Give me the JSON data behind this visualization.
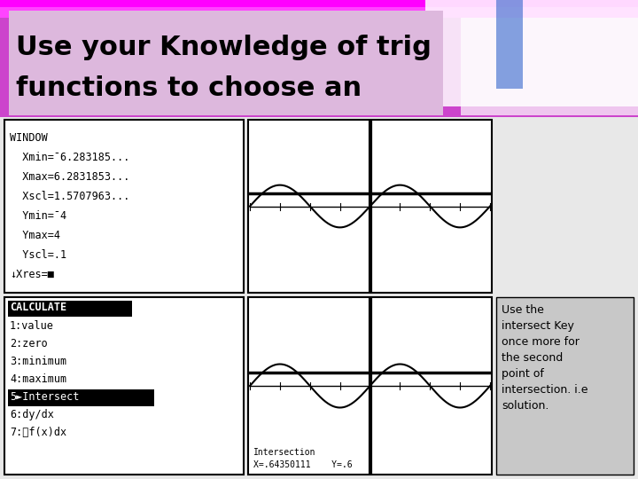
{
  "title_line1": "Use your Knowledge of trig",
  "title_line2": "functions to choose an",
  "title_bg": "#ddb8dd",
  "slide_bg": "#cc44cc",
  "slide_bg_right": "#aaaaff",
  "lower_bg": "#e8e8e8",
  "window_text": [
    "WINDOW",
    "  Xmin=¯6.283185...",
    "  Xmax=6.2831853...",
    "  Xscl=1.5707963...",
    "  Ymin=¯4",
    "  Ymax=4",
    "  Yscl=.1",
    "↓Xres=■"
  ],
  "calc_text": [
    "CALCULATE",
    "1:value",
    "2:zero",
    "3:minimum",
    "4:maximum",
    "5►Intersect",
    "6:dy/dx",
    "7:∯f(x)dx"
  ],
  "intersect_label": "Intersection",
  "intersect_coords": "X=.64350111    Y=.6",
  "note_text": "Use the\nintersect Key\nonce more for\nthe second\npoint of\nintersection. i.e\nsolution.",
  "note_bg": "#c8c8c8",
  "hline_y": 0.6,
  "xmin": -6.283185,
  "xmax": 6.283185,
  "ymin": -4,
  "ymax": 4,
  "panel_white": "#ffffff",
  "panel_border": "#000000",
  "text_color": "#000000",
  "curve_lw": 1.5,
  "hline_lw": 2.5,
  "vline_lw": 3.0,
  "title_fontsize": 22,
  "mono_fontsize": 8.5,
  "note_fontsize": 9
}
